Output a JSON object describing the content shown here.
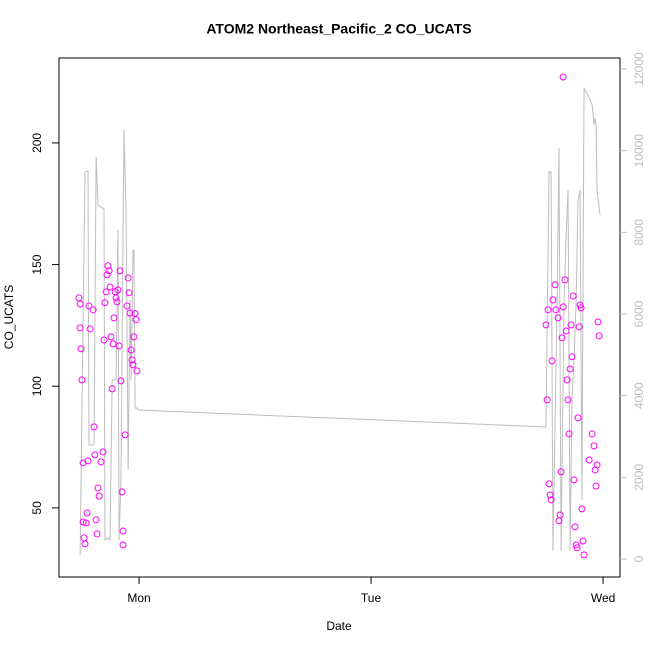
{
  "chart_data": {
    "type": "scatter",
    "title": "ATOM2 Northeast_Pacific_2 CO_UCATS",
    "xlabel": "Date",
    "ylabel": "CO_UCATS",
    "xlim": [
      0.655,
      3.073
    ],
    "xticks": [
      {
        "value": 1,
        "label": "Mon"
      },
      {
        "value": 2,
        "label": "Tue"
      },
      {
        "value": 3,
        "label": "Wed"
      }
    ],
    "ylim": [
      21.6,
      234.9
    ],
    "yticks": [
      50,
      100,
      150,
      200
    ],
    "y2lim": [
      -441,
      12269
    ],
    "y2ticks": [
      0,
      2000,
      4000,
      6000,
      8000,
      10000,
      12000
    ],
    "y2color": "#bebebe",
    "series": [
      {
        "color": "#ff00ff",
        "x": [
          0.741,
          0.746,
          0.746,
          0.75,
          0.754,
          0.759,
          0.759,
          0.763,
          0.767,
          0.772,
          0.776,
          0.78,
          0.784,
          0.789,
          0.802,
          0.806,
          0.81,
          0.815,
          0.819,
          0.823,
          0.828,
          0.836,
          0.845,
          0.849,
          0.853,
          0.858,
          0.862,
          0.866,
          0.871,
          0.875,
          0.879,
          0.884,
          0.888,
          0.892,
          0.897,
          0.901,
          0.905,
          0.909,
          0.914,
          0.918,
          0.922,
          0.927,
          0.931,
          0.931,
          0.94,
          0.948,
          0.953,
          0.957,
          0.961,
          0.966,
          0.97,
          0.974,
          0.978,
          0.983,
          0.987,
          0.991,
          2.754,
          2.759,
          2.763,
          2.767,
          2.772,
          2.776,
          2.78,
          2.784,
          2.793,
          2.797,
          2.806,
          2.81,
          2.815,
          2.819,
          2.823,
          2.828,
          2.836,
          2.841,
          2.845,
          2.849,
          2.853,
          2.858,
          2.862,
          2.866,
          2.871,
          2.875,
          2.879,
          2.884,
          2.888,
          2.892,
          2.897,
          2.901,
          2.905,
          2.909,
          2.914,
          2.918,
          2.94,
          2.953,
          2.961,
          2.966,
          2.97,
          2.974,
          2.978,
          2.983,
          2.828
        ],
        "values": [
          136.3,
          133.8,
          124.0,
          115.4,
          102.6,
          68.5,
          44.2,
          37.7,
          35.2,
          43.8,
          47.9,
          69.3,
          133.0,
          123.6,
          131.4,
          83.3,
          71.8,
          45.1,
          39.3,
          58.2,
          54.9,
          68.9,
          73.0,
          119.0,
          134.3,
          138.8,
          145.8,
          149.5,
          147.4,
          140.8,
          120.3,
          98.9,
          117.4,
          128.1,
          138.8,
          136.3,
          134.7,
          139.6,
          116.6,
          147.4,
          102.2,
          56.6,
          40.5,
          34.8,
          80.0,
          133.0,
          144.5,
          138.4,
          130.1,
          114.9,
          110.8,
          108.8,
          120.3,
          129.9,
          127.3,
          106.3,
          125.2,
          94.4,
          131.4,
          59.9,
          55.3,
          53.3,
          110.4,
          135.5,
          141.7,
          131.4,
          128.1,
          44.7,
          47.1,
          64.8,
          119.9,
          132.6,
          143.7,
          122.7,
          102.6,
          94.4,
          80.4,
          107.1,
          125.2,
          112.1,
          137.1,
          61.5,
          42.2,
          34.8,
          33.6,
          87.0,
          124.4,
          133.4,
          132.2,
          49.6,
          36.4,
          30.7,
          69.7,
          80.4,
          75.5,
          65.6,
          59.0,
          67.7,
          126.4,
          120.7,
          227.1
        ]
      },
      {
        "type": "line",
        "color": "#bebebe",
        "axis": "y2",
        "x": [
          0.746,
          0.767,
          0.78,
          0.784,
          0.806,
          0.815,
          0.823,
          0.828,
          0.849,
          0.853,
          0.866,
          0.875,
          0.884,
          0.901,
          0.909,
          0.914,
          0.922,
          0.935,
          0.944,
          0.953,
          0.961,
          0.966,
          0.974,
          0.978,
          0.983,
          0.991,
          0.996,
          2.754,
          2.767,
          2.776,
          2.784,
          2.802,
          2.81,
          2.819,
          2.832,
          2.841,
          2.849,
          2.858,
          2.866,
          2.875,
          2.884,
          2.892,
          2.901,
          2.909,
          2.918,
          2.944,
          2.953,
          2.961,
          2.966,
          2.97,
          2.974,
          2.987
        ],
        "values": [
          98,
          9478,
          9502,
          2792,
          2792,
          9846,
          8670,
          8646,
          8572,
          465,
          514,
          465,
          4384,
          4384,
          8058,
          465,
          1935,
          10507,
          8548,
          2180,
          6343,
          4384,
          7568,
          7568,
          3698,
          3698,
          3649,
          3233,
          9478,
          9478,
          196,
          6343,
          10066,
          196,
          6343,
          7935,
          9037,
          196,
          3894,
          4874,
          6343,
          8793,
          9037,
          1445,
          11535,
          11241,
          11119,
          10629,
          10801,
          10629,
          9037,
          8425
        ]
      }
    ]
  }
}
